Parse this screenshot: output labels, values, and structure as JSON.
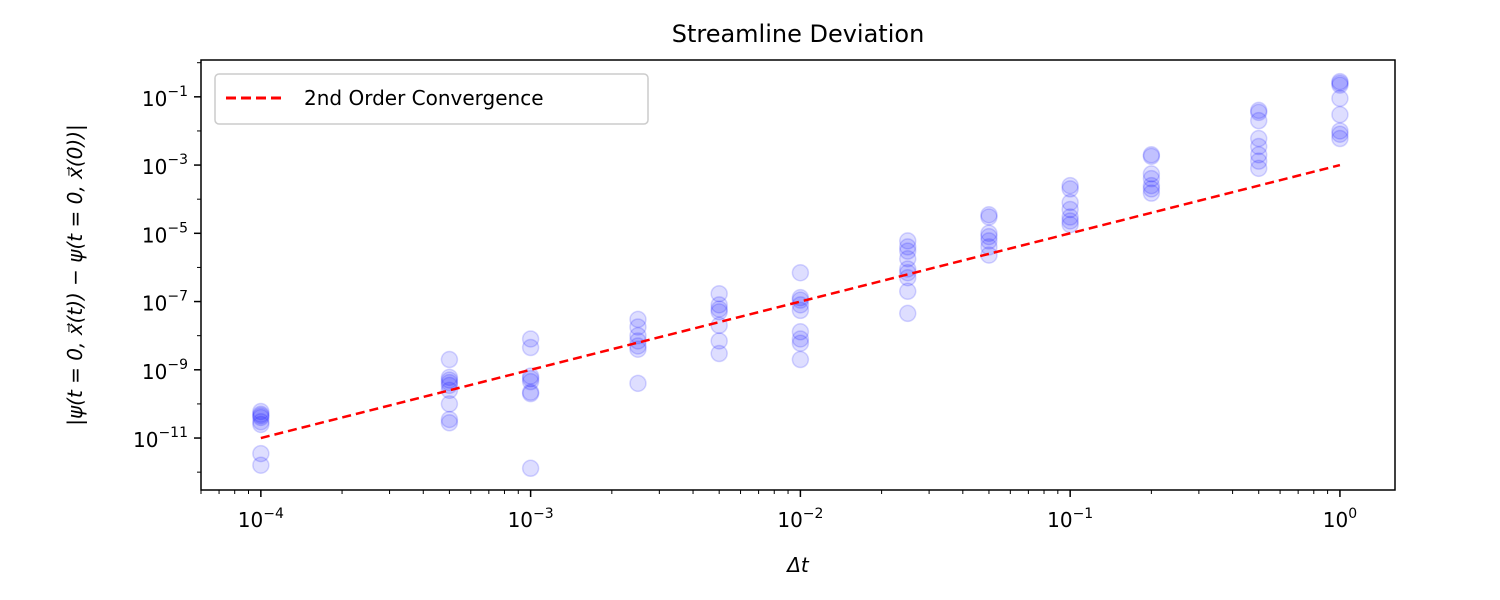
{
  "chart_data": {
    "type": "scatter",
    "title": "Streamline Deviation",
    "xlabel": "Δt",
    "ylabel": "|ψ(t = 0, x⃗(t)) − ψ(t = 0, x⃗(0))|",
    "xscale": "log",
    "yscale": "log",
    "xlim": [
      6e-05,
      1.6
    ],
    "ylim": [
      3e-13,
      1.2
    ],
    "xticks": [
      {
        "value": 0.0001,
        "base": "10",
        "exp": "−4"
      },
      {
        "value": 0.001,
        "base": "10",
        "exp": "−3"
      },
      {
        "value": 0.01,
        "base": "10",
        "exp": "−2"
      },
      {
        "value": 0.1,
        "base": "10",
        "exp": "−1"
      },
      {
        "value": 1,
        "base": "10",
        "exp": "0"
      }
    ],
    "yticks": [
      {
        "value": 1e-11,
        "base": "10",
        "exp": "−11"
      },
      {
        "value": 1e-09,
        "base": "10",
        "exp": "−9"
      },
      {
        "value": 1e-07,
        "base": "10",
        "exp": "−7"
      },
      {
        "value": 1e-05,
        "base": "10",
        "exp": "−5"
      },
      {
        "value": 0.001,
        "base": "10",
        "exp": "−3"
      },
      {
        "value": 0.1,
        "base": "10",
        "exp": "−1"
      }
    ],
    "grid": false,
    "legend": {
      "placement": "top-left",
      "entries": [
        "2nd Order Convergence"
      ]
    },
    "series": [
      {
        "style": "scatter",
        "color": "#0000ff",
        "alpha": 0.13,
        "points": [
          [
            0.0001,
            5e-11
          ],
          [
            0.0001,
            6e-11
          ],
          [
            0.0001,
            4.5e-11
          ],
          [
            0.0001,
            4e-11
          ],
          [
            0.0001,
            3e-11
          ],
          [
            0.0001,
            2.5e-11
          ],
          [
            0.0001,
            3.5e-12
          ],
          [
            0.0001,
            1.6e-12
          ],
          [
            0.0005,
            2e-09
          ],
          [
            0.0005,
            6e-10
          ],
          [
            0.0005,
            5e-10
          ],
          [
            0.0005,
            4.2e-10
          ],
          [
            0.0005,
            3.5e-10
          ],
          [
            0.0005,
            2.5e-10
          ],
          [
            0.0005,
            1e-10
          ],
          [
            0.0005,
            3.5e-11
          ],
          [
            0.0005,
            2.8e-11
          ],
          [
            0.001,
            8e-09
          ],
          [
            0.001,
            4.5e-09
          ],
          [
            0.001,
            6.5e-10
          ],
          [
            0.001,
            5.5e-10
          ],
          [
            0.001,
            4.5e-10
          ],
          [
            0.001,
            2.2e-10
          ],
          [
            0.001,
            2e-10
          ],
          [
            0.001,
            1.3e-12
          ],
          [
            0.0025,
            3e-08
          ],
          [
            0.0025,
            1.8e-08
          ],
          [
            0.0025,
            1e-08
          ],
          [
            0.0025,
            7e-09
          ],
          [
            0.0025,
            5e-09
          ],
          [
            0.0025,
            4e-09
          ],
          [
            0.0025,
            4e-10
          ],
          [
            0.005,
            1.7e-07
          ],
          [
            0.005,
            8e-08
          ],
          [
            0.005,
            6e-08
          ],
          [
            0.005,
            5e-08
          ],
          [
            0.005,
            2e-08
          ],
          [
            0.005,
            7e-09
          ],
          [
            0.005,
            3e-09
          ],
          [
            0.01,
            7e-07
          ],
          [
            0.01,
            1.3e-07
          ],
          [
            0.01,
            1.1e-07
          ],
          [
            0.01,
            8e-08
          ],
          [
            0.01,
            5.5e-08
          ],
          [
            0.01,
            1.3e-08
          ],
          [
            0.01,
            8e-09
          ],
          [
            0.01,
            6e-09
          ],
          [
            0.01,
            2e-09
          ],
          [
            0.025,
            6e-06
          ],
          [
            0.025,
            4e-06
          ],
          [
            0.025,
            3e-06
          ],
          [
            0.025,
            1.8e-06
          ],
          [
            0.025,
            9e-07
          ],
          [
            0.025,
            7e-07
          ],
          [
            0.025,
            5e-07
          ],
          [
            0.025,
            2e-07
          ],
          [
            0.025,
            4.5e-08
          ],
          [
            0.05,
            3.5e-05
          ],
          [
            0.05,
            3e-05
          ],
          [
            0.05,
            1e-05
          ],
          [
            0.05,
            8e-06
          ],
          [
            0.05,
            6e-06
          ],
          [
            0.05,
            4e-06
          ],
          [
            0.05,
            2.3e-06
          ],
          [
            0.1,
            0.00025
          ],
          [
            0.1,
            0.0002
          ],
          [
            0.1,
            8e-05
          ],
          [
            0.1,
            5e-05
          ],
          [
            0.1,
            3e-05
          ],
          [
            0.1,
            2.3e-05
          ],
          [
            0.1,
            1.8e-05
          ],
          [
            0.2,
            0.002
          ],
          [
            0.2,
            0.0018
          ],
          [
            0.2,
            0.00055
          ],
          [
            0.2,
            0.0004
          ],
          [
            0.2,
            0.00025
          ],
          [
            0.2,
            0.0002
          ],
          [
            0.2,
            0.00015
          ],
          [
            0.5,
            0.04
          ],
          [
            0.5,
            0.035
          ],
          [
            0.5,
            0.02
          ],
          [
            0.5,
            0.006
          ],
          [
            0.5,
            0.0035
          ],
          [
            0.5,
            0.002
          ],
          [
            0.5,
            0.0013
          ],
          [
            0.5,
            0.0008
          ],
          [
            1,
            0.28
          ],
          [
            1,
            0.25
          ],
          [
            1,
            0.22
          ],
          [
            1,
            0.09
          ],
          [
            1,
            0.03
          ],
          [
            1,
            0.01
          ],
          [
            1,
            0.008
          ],
          [
            1,
            0.006
          ]
        ]
      },
      {
        "name": "2nd Order Convergence",
        "style": "dashed-line",
        "color": "#ff0000",
        "x": [
          0.0001,
          1
        ],
        "y": [
          1e-11,
          0.001
        ]
      }
    ]
  }
}
